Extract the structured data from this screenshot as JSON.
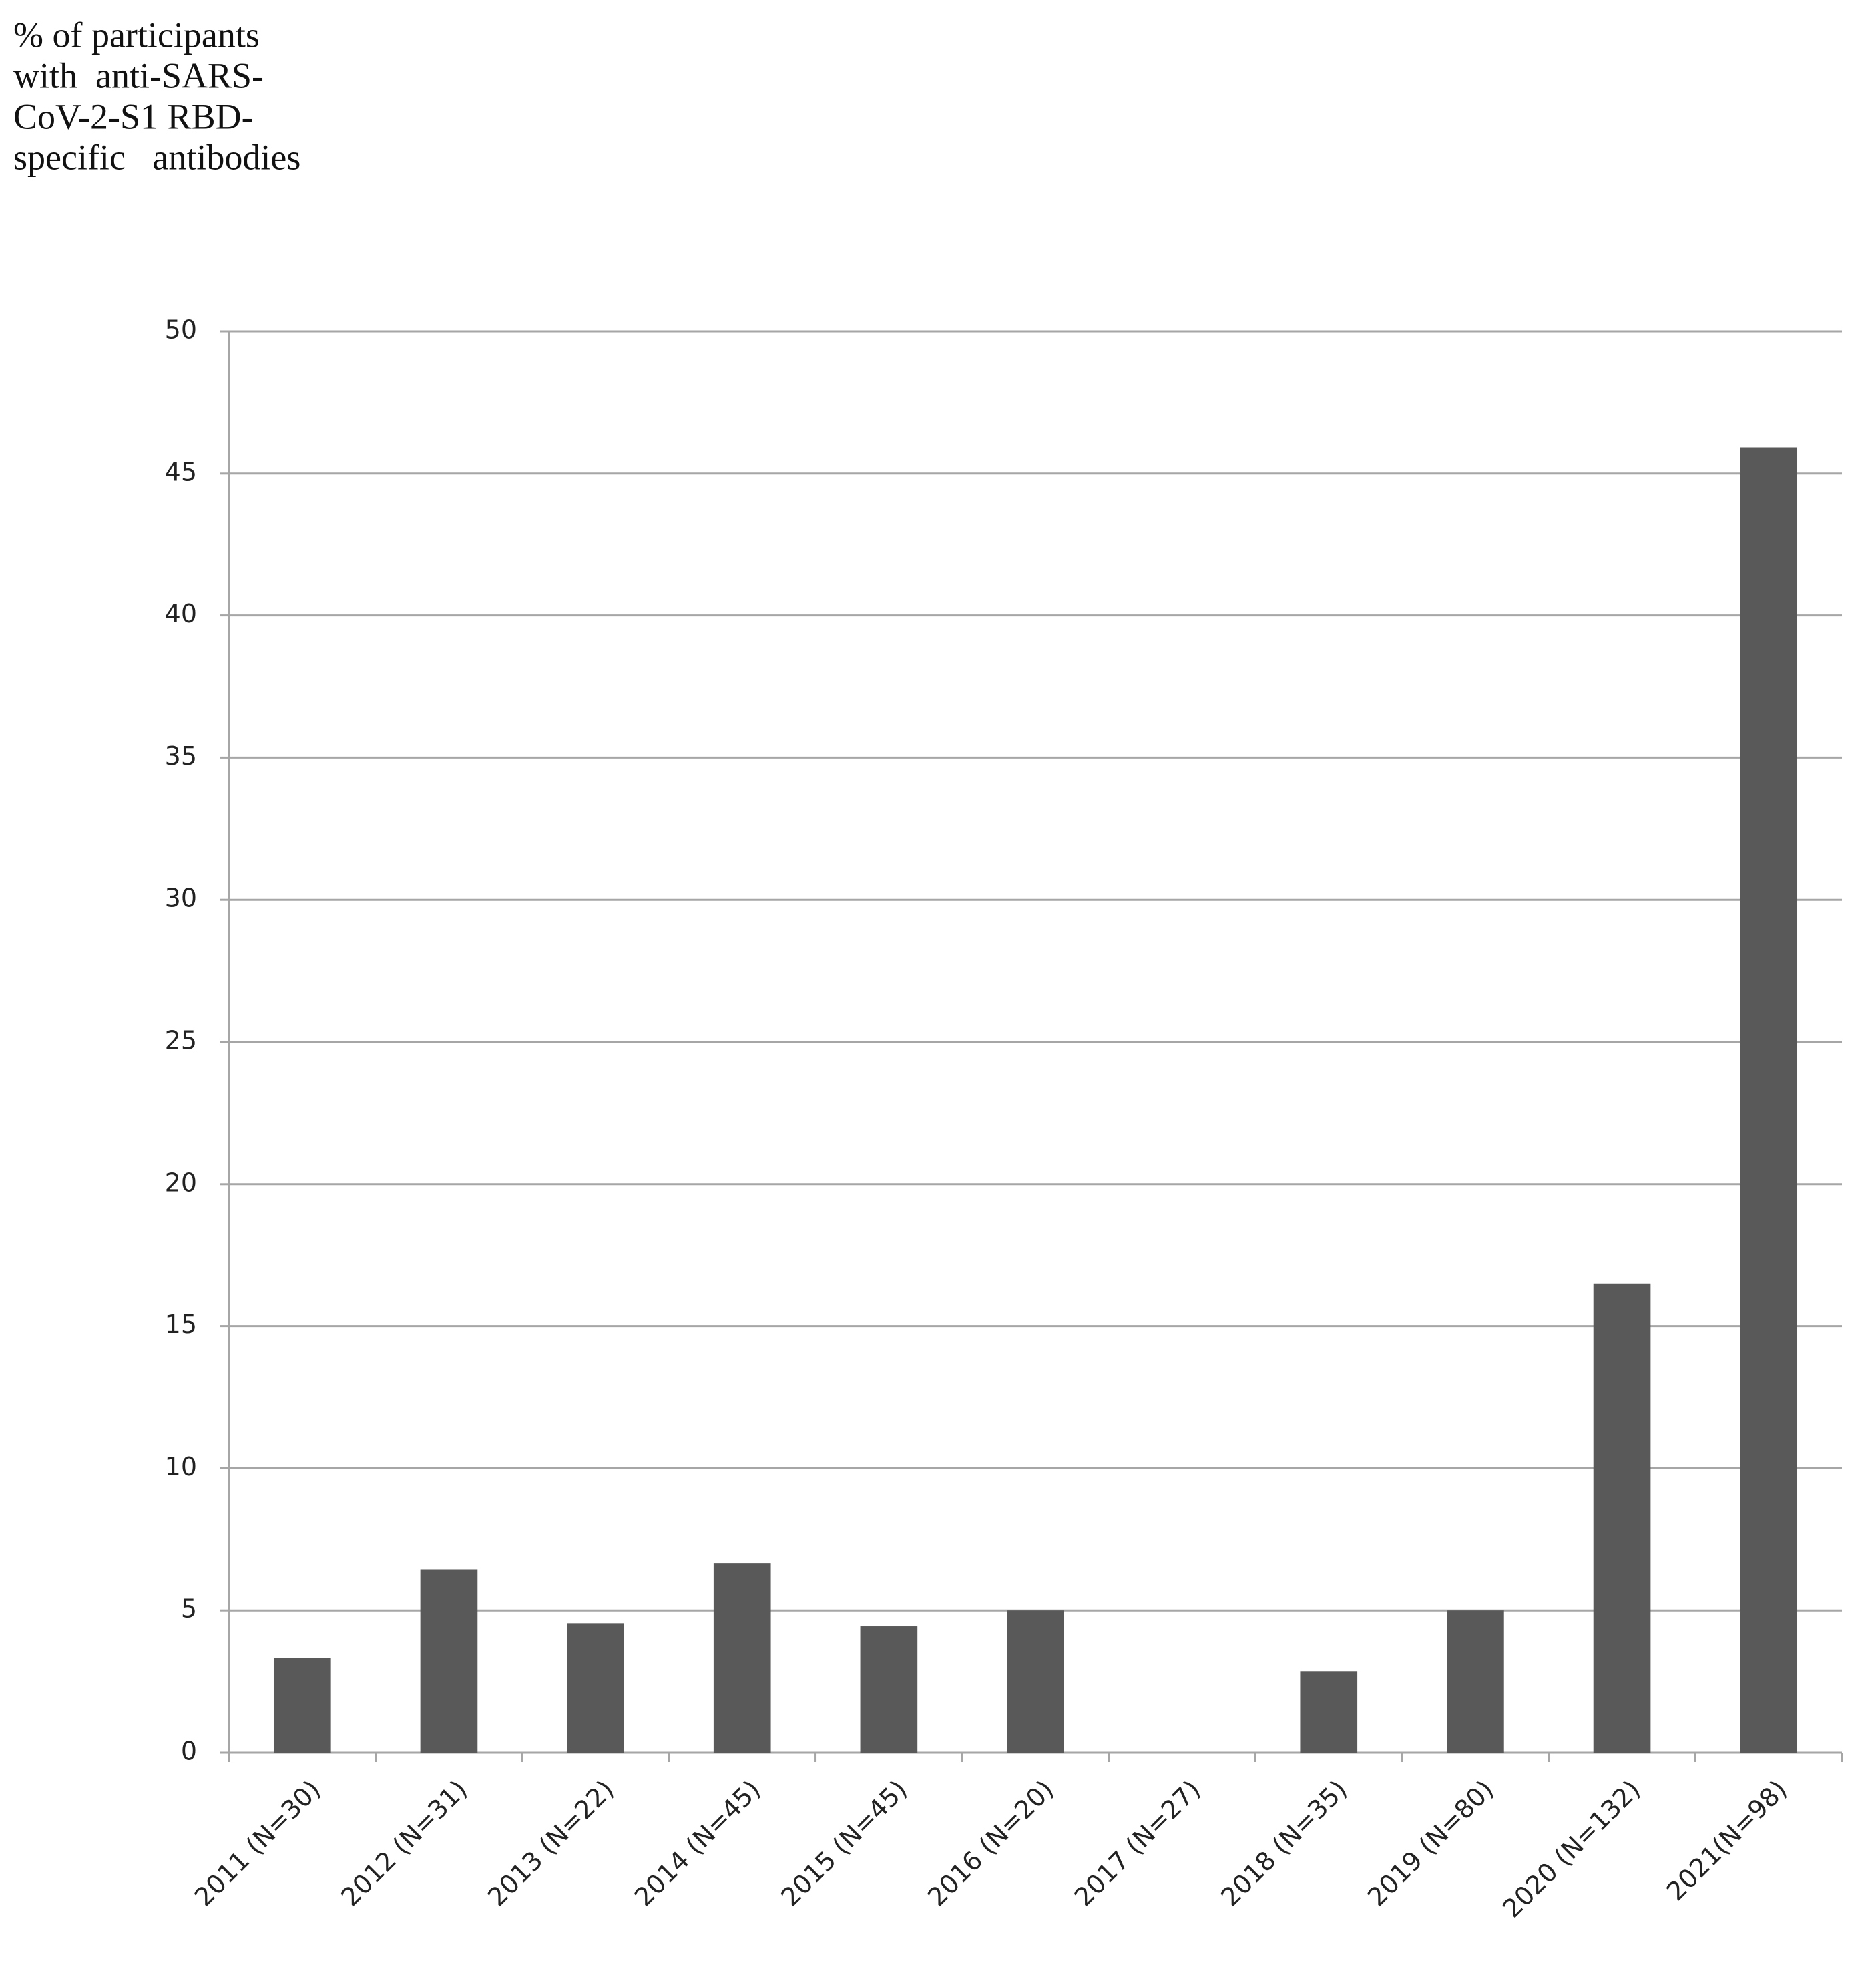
{
  "chart_data": {
    "type": "bar",
    "y_label": [
      "% of participants",
      "with  anti-SARS-",
      "CoV-2-S1 RBD-",
      "specific   antibodies"
    ],
    "categories": [
      "2011 (N=30)",
      "2012 (N=31)",
      "2013 (N=22)",
      "2014 (N=45)",
      "2015 (N=45)",
      "2016 (N=20)",
      "2017 (N=27)",
      "2018 (N=35)",
      "2019 (N=80)",
      "2020 (N=132)",
      "2021(N=98)"
    ],
    "values": [
      3.33,
      6.45,
      4.55,
      6.67,
      4.44,
      5,
      0,
      2.86,
      5,
      16.5,
      45.9
    ],
    "color": "#595959",
    "ylim": [
      0,
      50
    ],
    "yticks": [
      0,
      5,
      10,
      15,
      20,
      25,
      30,
      35,
      40,
      45,
      50
    ],
    "grid": true
  }
}
